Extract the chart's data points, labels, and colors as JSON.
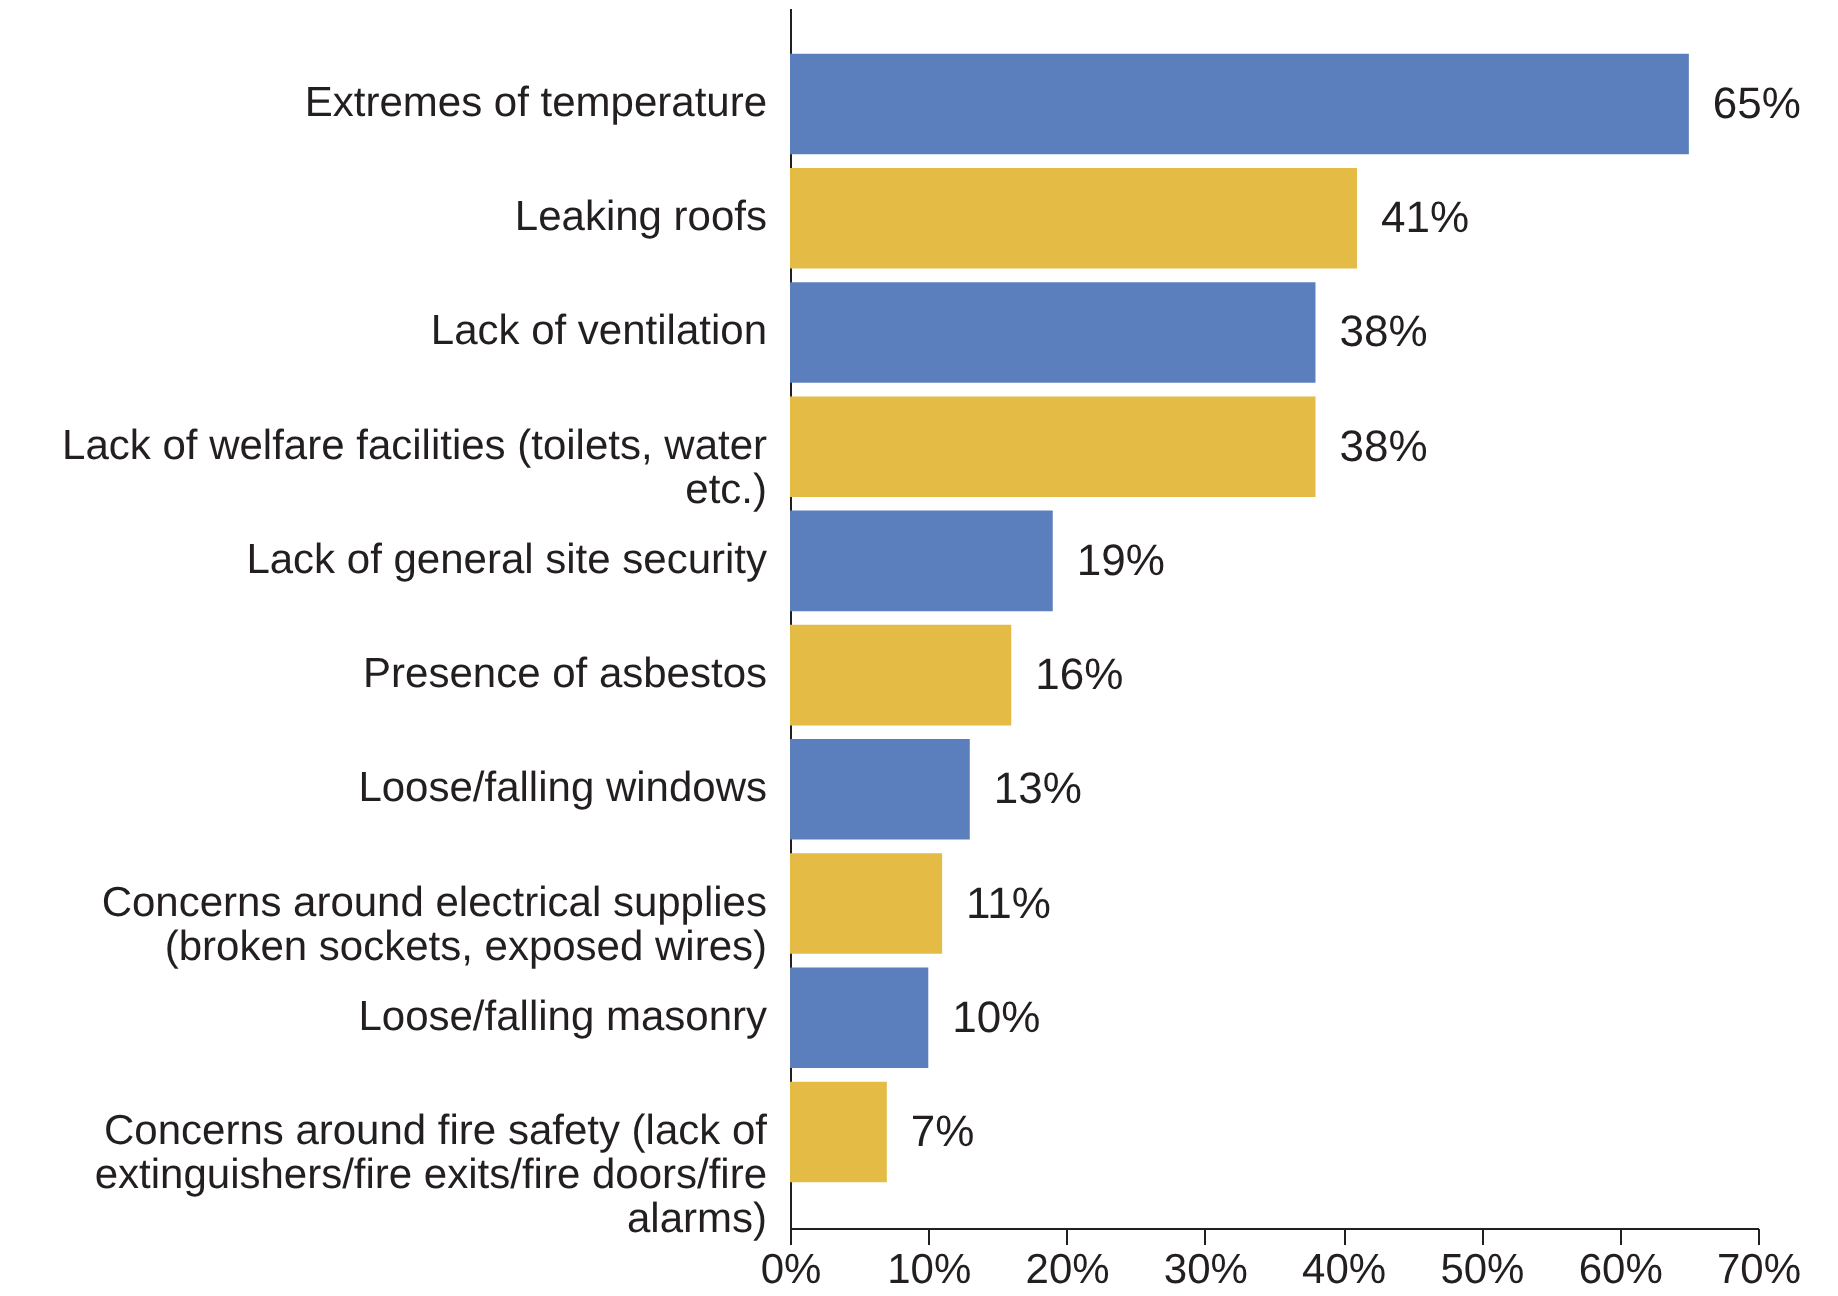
{
  "chart_data": {
    "type": "bar",
    "orientation": "horizontal",
    "categories": [
      "Extremes of temperature",
      "Leaking roofs",
      "Lack of ventilation",
      "Lack of welfare facilities (toilets, water etc.)",
      "Lack of general site security",
      "Presence of asbestos",
      "Loose/falling windows",
      "Concerns around electrical supplies (broken sockets, exposed wires)",
      "Loose/falling masonry",
      "Concerns around fire safety (lack of extinguishers/fire exits/fire doors/fire alarms)"
    ],
    "values": [
      65,
      41,
      38,
      38,
      19,
      16,
      13,
      11,
      10,
      7
    ],
    "colors": [
      "#5b7fbc",
      "#e3bb45",
      "#5b7fbc",
      "#e3bb45",
      "#5b7fbc",
      "#e3bb45",
      "#5b7fbc",
      "#e3bb45",
      "#5b7fbc",
      "#e3bb45"
    ],
    "value_labels": [
      "65%",
      "41%",
      "38%",
      "38%",
      "19%",
      "16%",
      "13%",
      "11%",
      "10%",
      "7%"
    ],
    "xlim": [
      0,
      70
    ],
    "xticks": [
      {
        "value": 0,
        "label": "0%"
      },
      {
        "value": 10,
        "label": "10%"
      },
      {
        "value": 20,
        "label": "20%"
      },
      {
        "value": 30,
        "label": "30%"
      },
      {
        "value": 40,
        "label": "40%"
      },
      {
        "value": 50,
        "label": "50%"
      },
      {
        "value": 60,
        "label": "60%"
      },
      {
        "value": 70,
        "label": "70%"
      }
    ],
    "grid": false
  }
}
